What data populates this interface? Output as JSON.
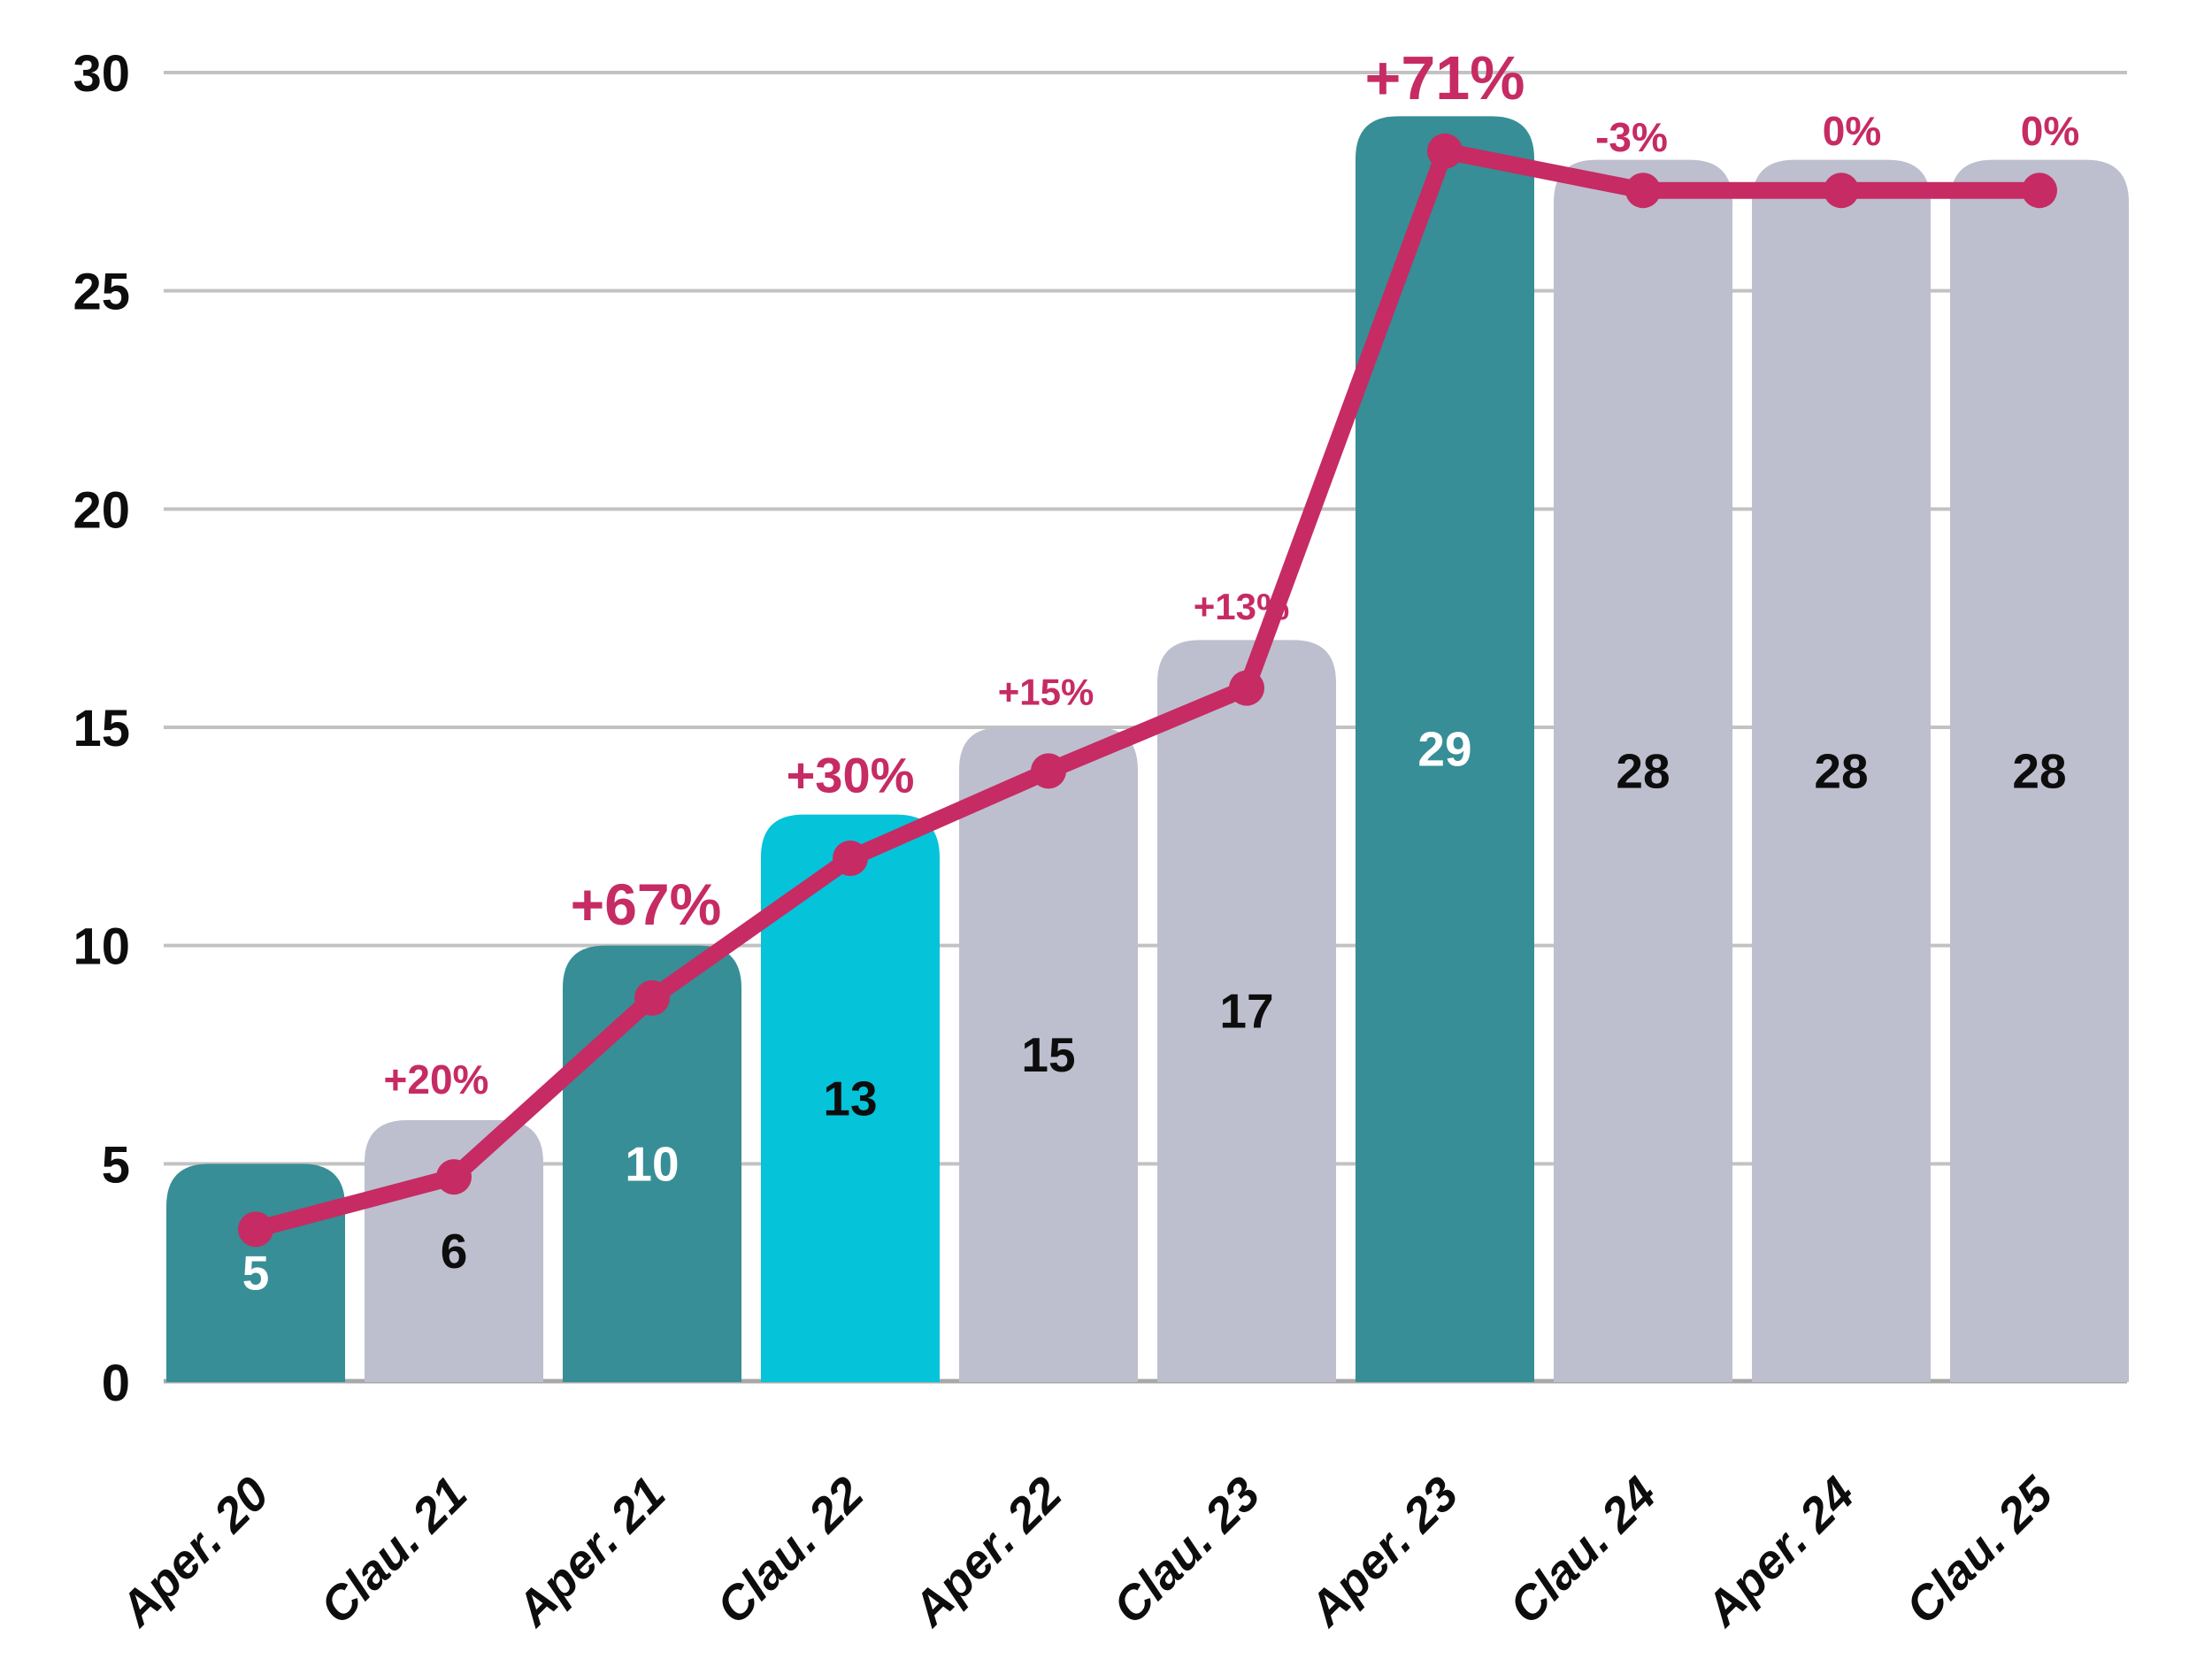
{
  "chart_data": {
    "type": "combo-bar-line",
    "title": "",
    "categories": [
      "Aper. 20",
      "Clau. 21",
      "Aper. 21",
      "Clau. 22",
      "Aper. 22",
      "Clau. 23",
      "Aper. 23",
      "Clau. 24",
      "Aper. 24",
      "Clau. 25"
    ],
    "series": [
      {
        "name": "bar-values",
        "type": "bar",
        "values": [
          5,
          6,
          10,
          13,
          15,
          17,
          29,
          28,
          28,
          28
        ]
      },
      {
        "name": "trend-line",
        "type": "line",
        "values": [
          3.5,
          4.7,
          8.8,
          12.0,
          14.0,
          15.9,
          28.2,
          27.3,
          27.3,
          27.3
        ],
        "point_labels": [
          "",
          "+20%",
          "+67%",
          "+30%",
          "+15%",
          "+13%",
          "+71%",
          "-3%",
          "0%",
          "0%"
        ]
      }
    ],
    "bar_color_keys": [
      "teal",
      "gray",
      "teal",
      "cyan",
      "gray",
      "gray",
      "teal",
      "gray",
      "gray",
      "gray"
    ],
    "bar_value_labels": [
      "5",
      "6",
      "10",
      "13",
      "15",
      "17",
      "29",
      "28",
      "28",
      "28"
    ],
    "bar_value_label_colors": [
      "#ffffff",
      "#0d0d0d",
      "#ffffff",
      "#0d0d0d",
      "#0d0d0d",
      "#0d0d0d",
      "#ffffff",
      "#0d0d0d",
      "#0d0d0d",
      "#0d0d0d"
    ],
    "pct_label_font_sizes": [
      0,
      46,
      66,
      56,
      42,
      42,
      70,
      46,
      46,
      46
    ],
    "pct_label_dx": [
      0,
      -20,
      -7,
      0,
      -3,
      -6,
      0,
      -13,
      12,
      12
    ],
    "pct_label_gap_above_bar": [
      0,
      46,
      47,
      45,
      40,
      38,
      44,
      26,
      33,
      33
    ],
    "yticks": [
      0,
      5,
      10,
      15,
      20,
      25,
      30
    ],
    "ylim": [
      0,
      30
    ],
    "grid": "horizontal",
    "legend": "none",
    "colors": {
      "teal": "#378e96",
      "gray": "#bdbfce",
      "cyan": "#05c3d9",
      "line": "#c62b64",
      "grid": "#c2c2c2",
      "axis": "#a8a8a8",
      "text_dark": "#0d0d0d",
      "text_on_teal": "#ffffff"
    }
  }
}
